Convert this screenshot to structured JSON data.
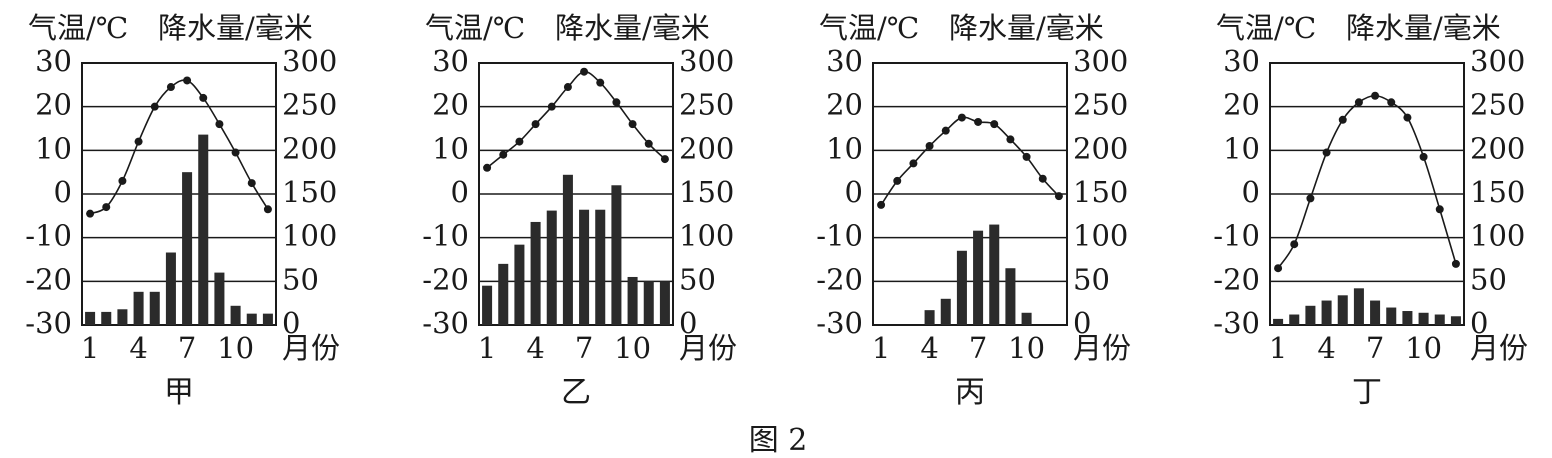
{
  "figure_caption": "图 2",
  "chart_data": [
    {
      "type": "bar+line",
      "caption": "甲",
      "temp_label": "气温/℃",
      "precip_label": "降水量/毫米",
      "x_unit": "月份",
      "months": [
        1,
        2,
        3,
        4,
        5,
        6,
        7,
        8,
        9,
        10,
        11,
        12
      ],
      "x_tick_labels": [
        "1",
        "4",
        "7",
        "10"
      ],
      "x_tick_months": [
        1,
        4,
        7,
        10
      ],
      "temp_ticks": [
        "30",
        "20",
        "10",
        "0",
        "-10",
        "-20",
        "-30"
      ],
      "precip_ticks": [
        "300",
        "250",
        "200",
        "150",
        "100",
        "50",
        "0"
      ],
      "temp_range": [
        -30,
        30
      ],
      "precip_range": [
        0,
        300
      ],
      "temperature": [
        -4.5,
        -3,
        3,
        12,
        20,
        24.5,
        26,
        22,
        16,
        9.5,
        2.5,
        -3.5
      ],
      "precipitation": [
        15,
        15,
        18,
        38,
        38,
        83,
        175,
        218,
        60,
        22,
        13,
        13
      ]
    },
    {
      "type": "bar+line",
      "caption": "乙",
      "temp_label": "气温/℃",
      "precip_label": "降水量/毫米",
      "x_unit": "月份",
      "months": [
        1,
        2,
        3,
        4,
        5,
        6,
        7,
        8,
        9,
        10,
        11,
        12
      ],
      "x_tick_labels": [
        "1",
        "4",
        "7",
        "10"
      ],
      "x_tick_months": [
        1,
        4,
        7,
        10
      ],
      "temp_ticks": [
        "30",
        "20",
        "10",
        "0",
        "-10",
        "-20",
        "-30"
      ],
      "precip_ticks": [
        "300",
        "250",
        "200",
        "150",
        "100",
        "50",
        "0"
      ],
      "temp_range": [
        -30,
        30
      ],
      "precip_range": [
        0,
        300
      ],
      "temperature": [
        6,
        9,
        12,
        16,
        20,
        24.5,
        28,
        25.5,
        21,
        16,
        11.5,
        8
      ],
      "precipitation": [
        45,
        70,
        92,
        118,
        131,
        172,
        132,
        132,
        160,
        55,
        50,
        50
      ]
    },
    {
      "type": "bar+line",
      "caption": "丙",
      "temp_label": "气温/℃",
      "precip_label": "降水量/毫米",
      "x_unit": "月份",
      "months": [
        1,
        2,
        3,
        4,
        5,
        6,
        7,
        8,
        9,
        10,
        11,
        12
      ],
      "x_tick_labels": [
        "1",
        "4",
        "7",
        "10"
      ],
      "x_tick_months": [
        1,
        4,
        7,
        10
      ],
      "temp_ticks": [
        "30",
        "20",
        "10",
        "0",
        "-10",
        "-20",
        "-30"
      ],
      "precip_ticks": [
        "300",
        "250",
        "200",
        "150",
        "100",
        "50",
        "0"
      ],
      "temp_range": [
        -30,
        30
      ],
      "precip_range": [
        0,
        300
      ],
      "temperature": [
        -2.5,
        3,
        7,
        11,
        14.5,
        17.5,
        16.5,
        16,
        12.5,
        8.5,
        3.5,
        -0.5
      ],
      "precipitation": [
        null,
        null,
        null,
        17,
        30,
        85,
        108,
        115,
        65,
        14,
        null,
        null
      ]
    },
    {
      "type": "bar+line",
      "caption": "丁",
      "temp_label": "气温/℃",
      "precip_label": "降水量/毫米",
      "x_unit": "月份",
      "months": [
        1,
        2,
        3,
        4,
        5,
        6,
        7,
        8,
        9,
        10,
        11,
        12
      ],
      "x_tick_labels": [
        "1",
        "4",
        "7",
        "10"
      ],
      "x_tick_months": [
        1,
        4,
        7,
        10
      ],
      "temp_ticks": [
        "30",
        "20",
        "10",
        "0",
        "-10",
        "-20",
        "-30"
      ],
      "precip_ticks": [
        "300",
        "250",
        "200",
        "150",
        "100",
        "50",
        "0"
      ],
      "temp_range": [
        -30,
        30
      ],
      "precip_range": [
        0,
        300
      ],
      "temperature": [
        -17,
        -11.5,
        -1,
        9.5,
        17,
        21,
        22.5,
        21,
        17.5,
        8.5,
        -3.5,
        -16
      ],
      "precipitation": [
        7,
        12,
        22,
        28,
        34,
        42,
        28,
        20,
        16,
        14,
        12,
        10
      ]
    }
  ]
}
